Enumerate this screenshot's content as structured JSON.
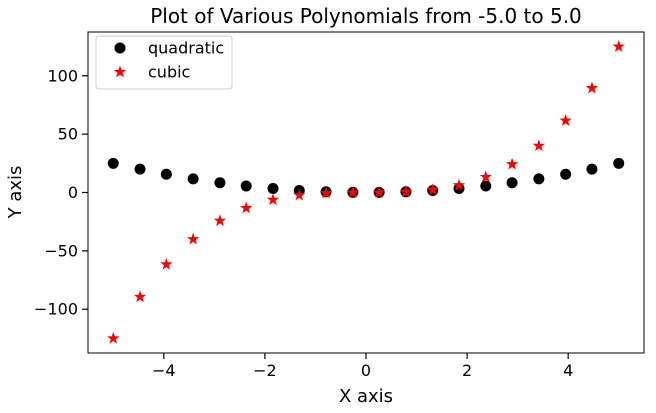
{
  "chart_data": {
    "type": "scatter",
    "title": "Plot of Various Polynomials from -5.0 to 5.0",
    "xlabel": "X axis",
    "ylabel": "Y axis",
    "xlim": [
      -5.5,
      5.5
    ],
    "ylim": [
      -137.5,
      137.5
    ],
    "xticks": [
      -4,
      -2,
      0,
      2,
      4
    ],
    "xtick_labels": [
      "−4",
      "−2",
      "0",
      "2",
      "4"
    ],
    "yticks": [
      -100,
      -50,
      0,
      50,
      100
    ],
    "ytick_labels": [
      "−100",
      "−50",
      "0",
      "50",
      "100"
    ],
    "grid": false,
    "legend_position": "top-left",
    "x": [
      -5.0,
      -4.47,
      -3.95,
      -3.42,
      -2.89,
      -2.37,
      -1.84,
      -1.32,
      -0.79,
      -0.26,
      0.26,
      0.79,
      1.32,
      1.84,
      2.37,
      2.89,
      3.42,
      3.95,
      4.47,
      5.0
    ],
    "series": [
      {
        "name": "quadratic",
        "marker": "circle",
        "color": "#000000",
        "values": [
          25.0,
          20.0,
          15.6,
          11.7,
          8.4,
          5.6,
          3.4,
          1.7,
          0.6,
          0.1,
          0.1,
          0.6,
          1.7,
          3.4,
          5.6,
          8.4,
          11.7,
          15.6,
          20.0,
          25.0
        ]
      },
      {
        "name": "cubic",
        "marker": "star",
        "color": "#ff0000",
        "values": [
          -125.0,
          -89.4,
          -61.6,
          -40.0,
          -24.2,
          -13.3,
          -6.2,
          -2.3,
          -0.5,
          0.0,
          0.0,
          0.5,
          2.3,
          6.2,
          13.3,
          24.2,
          40.0,
          61.6,
          89.4,
          125.0
        ]
      }
    ]
  }
}
